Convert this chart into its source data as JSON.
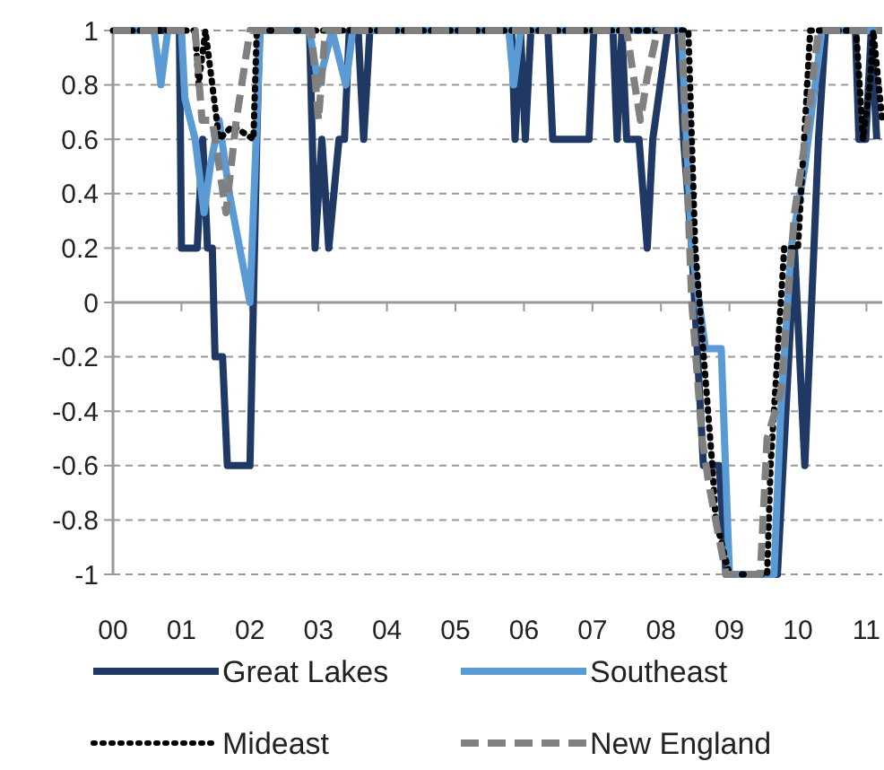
{
  "chart_data": {
    "type": "line",
    "xlim": [
      2000,
      2011.23
    ],
    "xticks": [
      {
        "value": 2000,
        "label": "00"
      },
      {
        "value": 2001,
        "label": "01"
      },
      {
        "value": 2002,
        "label": "02"
      },
      {
        "value": 2003,
        "label": "03"
      },
      {
        "value": 2004,
        "label": "04"
      },
      {
        "value": 2005,
        "label": "05"
      },
      {
        "value": 2006,
        "label": "06"
      },
      {
        "value": 2007,
        "label": "07"
      },
      {
        "value": 2008,
        "label": "08"
      },
      {
        "value": 2009,
        "label": "09"
      },
      {
        "value": 2010,
        "label": "10"
      },
      {
        "value": 2011,
        "label": "11"
      }
    ],
    "ylim": [
      -1,
      1
    ],
    "yticks": [
      {
        "value": -1,
        "label": "-1"
      },
      {
        "value": -0.8,
        "label": "-0.8"
      },
      {
        "value": -0.6,
        "label": "-0.6"
      },
      {
        "value": -0.4,
        "label": "-0.4"
      },
      {
        "value": -0.2,
        "label": "-0.2"
      },
      {
        "value": 0,
        "label": "0"
      },
      {
        "value": 0.2,
        "label": "0.2"
      },
      {
        "value": 0.4,
        "label": "0.4"
      },
      {
        "value": 0.6,
        "label": "0.6"
      },
      {
        "value": 0.8,
        "label": "0.8"
      },
      {
        "value": 1,
        "label": "1"
      }
    ],
    "grid": "y",
    "legend": "bottom",
    "series": [
      {
        "name": "Great Lakes",
        "color": "#1f3864",
        "line_style": "solid",
        "x": [
          2000,
          2000.97,
          2001.0,
          2001.23,
          2001.31,
          2001.38,
          2001.45,
          2001.49,
          2001.6,
          2001.67,
          2002.0,
          2002.1,
          2002.14,
          2002.87,
          2002.95,
          2003.05,
          2003.15,
          2003.3,
          2003.38,
          2003.45,
          2003.58,
          2003.66,
          2003.75,
          2005.82,
          2005.87,
          2005.95,
          2006.02,
          2006.1,
          2006.35,
          2006.42,
          2006.95,
          2007.02,
          2007.3,
          2007.36,
          2007.43,
          2007.5,
          2007.68,
          2007.8,
          2007.88,
          2008.1,
          2008.25,
          2008.33,
          2008.45,
          2008.62,
          2008.85,
          2008.95,
          2009.7,
          2009.95,
          2010.1,
          2010.3,
          2010.4,
          2010.84,
          2010.89,
          2010.99,
          2011.07,
          2011.15
        ],
        "values": [
          1,
          1,
          0.2,
          0.2,
          0.6,
          0.2,
          0.2,
          -0.2,
          -0.2,
          -0.6,
          -0.6,
          0.6,
          1,
          1,
          0.2,
          0.6,
          0.2,
          0.6,
          0.6,
          1,
          1,
          0.6,
          1,
          1,
          0.6,
          1,
          0.6,
          1,
          1,
          0.6,
          0.6,
          1,
          1,
          0.6,
          1,
          0.6,
          0.6,
          0.2,
          0.6,
          1,
          1,
          0.6,
          0.2,
          -0.6,
          -0.6,
          -1,
          -1,
          0.2,
          -0.6,
          0.6,
          1,
          1,
          0.6,
          0.6,
          1,
          0.6
        ]
      },
      {
        "name": "Southeast",
        "color": "#5b9bd5",
        "line_style": "solid",
        "x": [
          2000,
          2000.6,
          2000.7,
          2000.8,
          2001.0,
          2001.05,
          2001.2,
          2001.33,
          2001.42,
          2001.55,
          2001.7,
          2002.0,
          2002.15,
          2002.87,
          2003.0,
          2003.2,
          2003.4,
          2003.5,
          2005.78,
          2005.85,
          2005.95,
          2008.3,
          2008.45,
          2008.65,
          2008.88,
          2009.0,
          2009.65,
          2009.75,
          2009.9,
          2010.1,
          2010.35,
          2011.23
        ],
        "values": [
          1,
          1,
          0.8,
          1,
          1,
          0.75,
          0.6,
          0.33,
          0.5,
          0.67,
          0.4,
          0,
          1,
          1,
          0.8,
          1,
          0.8,
          1,
          1,
          0.8,
          1,
          1,
          0.2,
          -0.17,
          -0.17,
          -1,
          -1,
          -0.4,
          0.2,
          0.5,
          1,
          1
        ]
      },
      {
        "name": "Mideast",
        "color": "#000000",
        "line_style": "dotted",
        "x": [
          2000,
          2001.2,
          2001.25,
          2001.35,
          2001.55,
          2001.75,
          2002.05,
          2002.1,
          2008.4,
          2008.5,
          2008.75,
          2008.8,
          2009.0,
          2009.55,
          2009.6,
          2009.8,
          2010.0,
          2010.18,
          2010.85,
          2010.95,
          2011.05,
          2011.1,
          2011.23
        ],
        "values": [
          1,
          1,
          0.8,
          1,
          0.6,
          0.65,
          0.6,
          1,
          1,
          0.2,
          -0.6,
          -0.8,
          -1,
          -1,
          -0.6,
          0.2,
          0.2,
          1,
          1,
          0.6,
          0.8,
          1,
          0.67
        ]
      },
      {
        "name": "New England",
        "color": "#808080",
        "line_style": "dashed",
        "x": [
          2000,
          2001.2,
          2001.3,
          2001.45,
          2001.55,
          2001.65,
          2001.8,
          2002.0,
          2002.9,
          2002.95,
          2003.0,
          2003.1,
          2007.5,
          2007.6,
          2007.7,
          2007.8,
          2007.95,
          2008.3,
          2008.45,
          2008.6,
          2008.7,
          2008.95,
          2009.45,
          2009.55,
          2009.75,
          2009.95,
          2010.15,
          2010.3,
          2011.23
        ],
        "values": [
          1,
          1,
          0.67,
          0.67,
          0.5,
          0.33,
          0.67,
          1,
          1,
          0.83,
          0.67,
          1,
          1,
          0.83,
          0.67,
          0.83,
          1,
          1,
          0,
          -0.5,
          -0.67,
          -1,
          -1,
          -0.5,
          -0.33,
          0.33,
          0.67,
          1,
          1
        ]
      }
    ]
  }
}
